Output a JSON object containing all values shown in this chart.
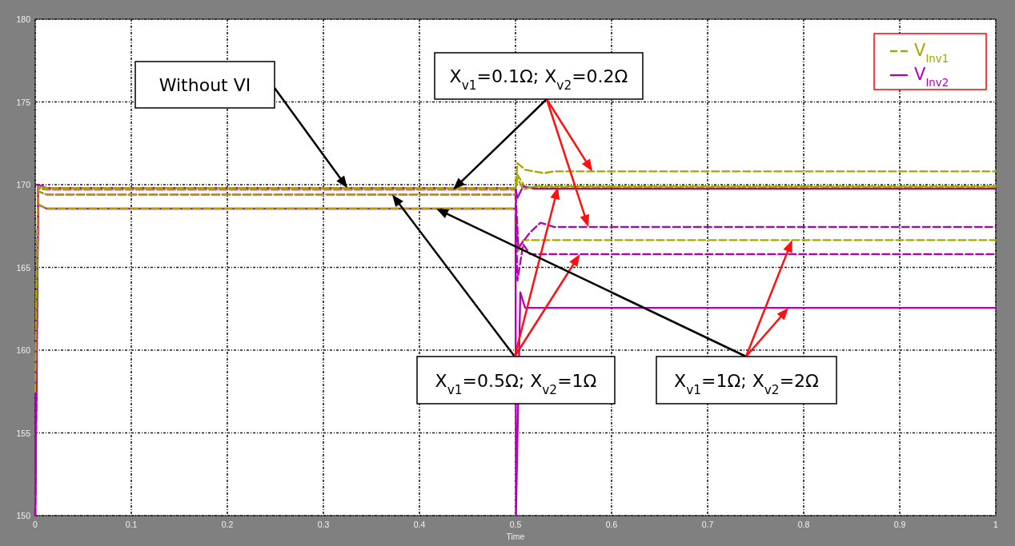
{
  "chart_data": {
    "type": "line",
    "xlabel": "Time",
    "xlim": [
      0,
      1
    ],
    "xticks": [
      0,
      0.1,
      0.2,
      0.3,
      0.4,
      0.5,
      0.6,
      0.7,
      0.8,
      0.9,
      1
    ],
    "ylim": [
      150,
      180
    ],
    "yticks": [
      150,
      155,
      160,
      165,
      170,
      175,
      180
    ],
    "grid": true,
    "legend": "top right",
    "annotations": [
      "Without VI",
      {
        "text": "X$_{v1}$=0.1Ω; X$_{v2}$=0.2Ω",
        "x": 0.58,
        "y": 170.8
      },
      {
        "text": "X$_{v1}$=0.5Ω; X$_{v2}$=1Ω",
        "x": 0.567,
        "y": 165.8
      },
      {
        "text": "X$_{v1}$=1Ω; X$_{v2}$=2Ω",
        "x": 0.788,
        "y": 166.65
      }
    ],
    "series": [
      {
        "name": "V$_{Inv1}$",
        "color": "#a6a600",
        "line_style": "dashed",
        "x": [
          0,
          0.003,
          0.012,
          0.5,
          0.502,
          0.508,
          0.52,
          1
        ],
        "values": [
          157.5,
          169.9,
          169.8,
          169.8,
          170.4,
          169.7,
          169.9,
          169.9
        ]
      },
      {
        "name": "V$_{Inv2}$",
        "color": "#b400b4",
        "line_style": "solid",
        "x": [
          0,
          0.003,
          0.012,
          0.5,
          0.502,
          0.508,
          0.52,
          1
        ],
        "values": [
          150,
          170,
          169.8,
          169.8,
          169.2,
          169.9,
          169.75,
          169.75
        ]
      },
      {
        "color": "#a6a600",
        "line_style": "dashed",
        "x": [
          0,
          0.003,
          0.012,
          0.5,
          0.502,
          0.51,
          0.53,
          0.54,
          1
        ],
        "values": [
          157.5,
          169.8,
          169.7,
          169.7,
          171.3,
          170.9,
          170.7,
          170.8,
          170.8
        ]
      },
      {
        "color": "#b400b4",
        "line_style": "dashed",
        "x": [
          0,
          0.003,
          0.012,
          0.5,
          0.503,
          0.515,
          0.526,
          0.54,
          1
        ],
        "values": [
          150,
          169.8,
          169.7,
          169.7,
          166.2,
          167.1,
          167.7,
          167.45,
          167.45
        ]
      },
      {
        "color": "#a6a600",
        "line_style": "dashed",
        "x": [
          0,
          0.003,
          0.012,
          0.5,
          0.502,
          0.51,
          1
        ],
        "values": [
          157.5,
          169.6,
          169.4,
          169.4,
          170.6,
          169.85,
          169.85
        ]
      },
      {
        "color": "#b400b4",
        "line_style": "dashed",
        "x": [
          0,
          0.003,
          0.012,
          0.5,
          0.502,
          0.508,
          0.515,
          1
        ],
        "values": [
          150,
          169.6,
          169.4,
          169.4,
          164.2,
          166.4,
          165.8,
          165.8
        ]
      },
      {
        "color": "#a6a600",
        "line_style": "dashed",
        "x": [
          0,
          0.003,
          0.012,
          0.5,
          0.503,
          0.508,
          1
        ],
        "values": [
          157.5,
          168.8,
          168.55,
          168.55,
          166,
          166.65,
          166.65
        ]
      },
      {
        "color": "#b400b4",
        "line_style": "solid",
        "x": [
          0,
          0.003,
          0.012,
          0.5,
          0.5005,
          0.505,
          0.51,
          1
        ],
        "values": [
          150,
          168.8,
          168.55,
          168.55,
          150,
          163.5,
          162.55,
          162.55
        ]
      }
    ]
  }
}
